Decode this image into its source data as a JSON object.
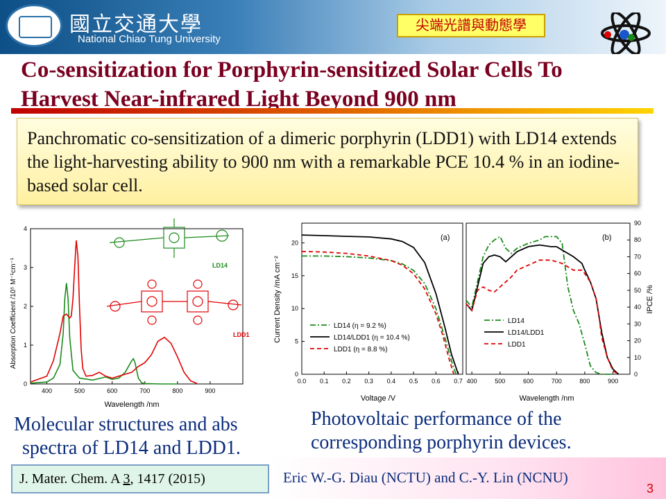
{
  "header": {
    "university_zh": "國立交通大學",
    "university_en": "National Chiao Tung University",
    "topic_tag": "尖端光譜與動態學"
  },
  "title": {
    "line1": "Co-sensitization for Porphyrin-sensitized Solar Cells To",
    "line2": "Harvest Near-infrared Light Beyond 900 nm"
  },
  "summary": "Panchromatic co-sensitization of a dimeric porphyrin (LDD1) with LD14 extends the light-harvesting ability to 900 nm with a remarkable PCE 10.4 % in an iodine-based solar cell.",
  "captions": {
    "left_line1": "Molecular structures and abs",
    "left_line2": "spectra of LD14 and LDD1.",
    "right_line1": "Photovoltaic performance of the",
    "right_line2": "corresponding porphyrin devices."
  },
  "reference": {
    "prefix": "J. Mater. Chem. A ",
    "volume": "3",
    "suffix": ", 1417 (2015)"
  },
  "authors": "Eric W.-G. Diau (NCTU) and C.-Y. Lin (NCNU)",
  "page_number": "3",
  "colors": {
    "ld14": "#1a8a1a",
    "ldd1": "#e00000",
    "ld14ldd1": "#000000",
    "title": "#7a0020"
  },
  "molecule_labels": {
    "ld14": "LD14",
    "ldd1": "LDD1"
  },
  "chart_data": [
    {
      "type": "line",
      "xlabel": "Wavelength /nm",
      "ylabel": "Absorption Coefficient /10⁵ M⁻¹cm⁻¹",
      "xlim": [
        350,
        1000
      ],
      "ylim": [
        0,
        4
      ],
      "xticks": [
        400,
        500,
        600,
        700,
        800,
        900
      ],
      "yticks": [
        0,
        1,
        2,
        3,
        4
      ],
      "series": [
        {
          "name": "LD14",
          "color": "#1a8a1a",
          "x": [
            350,
            400,
            420,
            440,
            450,
            455,
            460,
            465,
            470,
            480,
            500,
            540,
            580,
            600,
            620,
            640,
            650,
            660,
            665,
            670,
            675,
            680,
            690,
            700,
            750,
            800
          ],
          "y": [
            0.02,
            0.05,
            0.15,
            0.5,
            1.3,
            2.2,
            2.6,
            2.2,
            1.2,
            0.35,
            0.15,
            0.1,
            0.18,
            0.12,
            0.15,
            0.3,
            0.45,
            0.6,
            0.65,
            0.55,
            0.35,
            0.15,
            0.03,
            0.01,
            0,
            0
          ]
        },
        {
          "name": "LDD1",
          "color": "#e00000",
          "x": [
            350,
            400,
            420,
            440,
            450,
            460,
            470,
            475,
            480,
            485,
            490,
            495,
            500,
            505,
            510,
            520,
            540,
            560,
            580,
            600,
            620,
            640,
            660,
            680,
            700,
            720,
            740,
            760,
            780,
            800,
            820,
            840,
            860
          ],
          "y": [
            0.05,
            0.2,
            0.6,
            1.3,
            1.75,
            1.8,
            1.7,
            1.75,
            2.2,
            3.0,
            3.7,
            3.3,
            2.0,
            0.9,
            0.4,
            0.2,
            0.22,
            0.3,
            0.2,
            0.15,
            0.2,
            0.25,
            0.3,
            0.45,
            0.55,
            0.75,
            1.1,
            1.2,
            1.05,
            0.7,
            0.3,
            0.08,
            0.01
          ]
        }
      ]
    },
    {
      "type": "line",
      "panel": "(a)",
      "xlabel": "Voltage /V",
      "ylabel": "Current Density /mA cm⁻²",
      "xlim": [
        0,
        0.72
      ],
      "ylim": [
        0,
        23
      ],
      "xticks": [
        0.0,
        0.1,
        0.2,
        0.3,
        0.4,
        0.5,
        0.6,
        0.7
      ],
      "yticks": [
        0,
        5,
        10,
        15,
        20
      ],
      "legend": [
        "LD14 (η = 9.2 %)",
        "LD14/LDD1 (η = 10.4 %)",
        "LDD1 (η = 8.8 %)"
      ],
      "series": [
        {
          "name": "LD14 (η = 9.2 %)",
          "color": "#1a8a1a",
          "dash": "dashdot",
          "x": [
            0,
            0.1,
            0.2,
            0.3,
            0.4,
            0.45,
            0.5,
            0.55,
            0.6,
            0.64,
            0.67,
            0.69
          ],
          "y": [
            18.0,
            18.0,
            17.9,
            17.7,
            17.3,
            16.8,
            15.8,
            13.8,
            10.0,
            5.6,
            2.0,
            0
          ]
        },
        {
          "name": "LD14/LDD1 (η = 10.4 %)",
          "color": "#000000",
          "dash": "solid",
          "x": [
            0,
            0.1,
            0.2,
            0.3,
            0.4,
            0.45,
            0.5,
            0.55,
            0.6,
            0.64,
            0.67,
            0.7
          ],
          "y": [
            21.2,
            21.1,
            21.0,
            20.9,
            20.6,
            20.2,
            19.3,
            17.0,
            12.3,
            7.2,
            3.0,
            0
          ]
        },
        {
          "name": "LDD1 (η = 8.8 %)",
          "color": "#e00000",
          "dash": "dashed",
          "x": [
            0,
            0.1,
            0.2,
            0.3,
            0.4,
            0.45,
            0.5,
            0.55,
            0.6,
            0.63,
            0.66,
            0.68
          ],
          "y": [
            18.7,
            18.6,
            18.4,
            18.0,
            17.3,
            16.6,
            15.3,
            13.0,
            9.2,
            6.0,
            2.2,
            0
          ]
        }
      ]
    },
    {
      "type": "line",
      "panel": "(b)",
      "xlabel": "Wavelength /nm",
      "ylabel": "IPCE /%",
      "xlim": [
        380,
        960
      ],
      "ylim": [
        0,
        90
      ],
      "xticks": [
        400,
        500,
        600,
        700,
        800,
        900
      ],
      "yticks": [
        0,
        10,
        20,
        30,
        40,
        50,
        60,
        70,
        80,
        90
      ],
      "legend": [
        "LD14",
        "LD14/LDD1",
        "LDD1"
      ],
      "series": [
        {
          "name": "LD14",
          "color": "#1a8a1a",
          "dash": "dashdot",
          "x": [
            380,
            400,
            420,
            440,
            460,
            480,
            500,
            520,
            540,
            560,
            600,
            640,
            660,
            700,
            720,
            740,
            760,
            780,
            800,
            820,
            840,
            860,
            900
          ],
          "y": [
            44,
            40,
            55,
            70,
            77,
            80,
            82,
            75,
            72,
            75,
            78,
            80,
            82,
            82,
            78,
            52,
            38,
            30,
            18,
            5,
            1,
            0,
            0
          ]
        },
        {
          "name": "LD14/LDD1",
          "color": "#000000",
          "dash": "solid",
          "x": [
            380,
            400,
            420,
            440,
            460,
            480,
            500,
            520,
            540,
            560,
            600,
            640,
            680,
            700,
            720,
            760,
            790,
            800,
            820,
            840,
            860,
            880,
            900,
            920
          ],
          "y": [
            42,
            38,
            52,
            66,
            70,
            71,
            70,
            67,
            70,
            73,
            76,
            77,
            76,
            76,
            74,
            70,
            66,
            62,
            55,
            45,
            25,
            10,
            3,
            0
          ]
        },
        {
          "name": "LDD1",
          "color": "#e00000",
          "dash": "dashed",
          "x": [
            380,
            400,
            420,
            440,
            460,
            480,
            500,
            520,
            540,
            560,
            600,
            640,
            680,
            720,
            760,
            790,
            800,
            820,
            840,
            850,
            860,
            880,
            900,
            920
          ],
          "y": [
            42,
            38,
            50,
            52,
            50,
            49,
            52,
            55,
            58,
            62,
            65,
            68,
            68,
            66,
            62,
            62,
            60,
            55,
            45,
            35,
            22,
            10,
            2,
            0
          ]
        }
      ]
    }
  ]
}
